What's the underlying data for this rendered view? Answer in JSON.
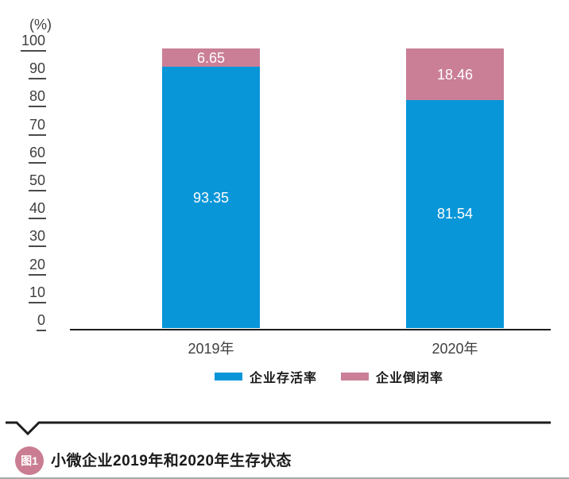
{
  "chart_data": {
    "type": "bar",
    "stacked": true,
    "unit_label": "(%)",
    "categories": [
      "2019年",
      "2020年"
    ],
    "series": [
      {
        "name": "企业存活率",
        "color": "#0996d9",
        "values": [
          93.35,
          81.54
        ],
        "value_labels": [
          "93.35",
          "81.54"
        ]
      },
      {
        "name": "企业倒闭率",
        "color": "#ca7f97",
        "values": [
          6.65,
          18.46
        ],
        "value_labels": [
          "6.65",
          "18.46"
        ]
      }
    ],
    "ylim": [
      0,
      100
    ],
    "yticks": [
      0,
      10,
      20,
      30,
      40,
      50,
      60,
      70,
      80,
      90,
      100
    ],
    "grid": false,
    "legend_position": "bottom",
    "value_label_style": "white-inside-segments"
  },
  "caption": {
    "badge": "图1",
    "title": "小微企业2019年和2020年生存状态"
  },
  "colors": {
    "survival_blue": "#0996d9",
    "closure_pink": "#ca7f97",
    "badge_pink": "#ca7d92",
    "axis_black": "#1d1d1d",
    "tick_gray": "#3f3f3f",
    "title_black": "#1a1a1a",
    "bottom_border_gray": "#a9a9a9"
  }
}
